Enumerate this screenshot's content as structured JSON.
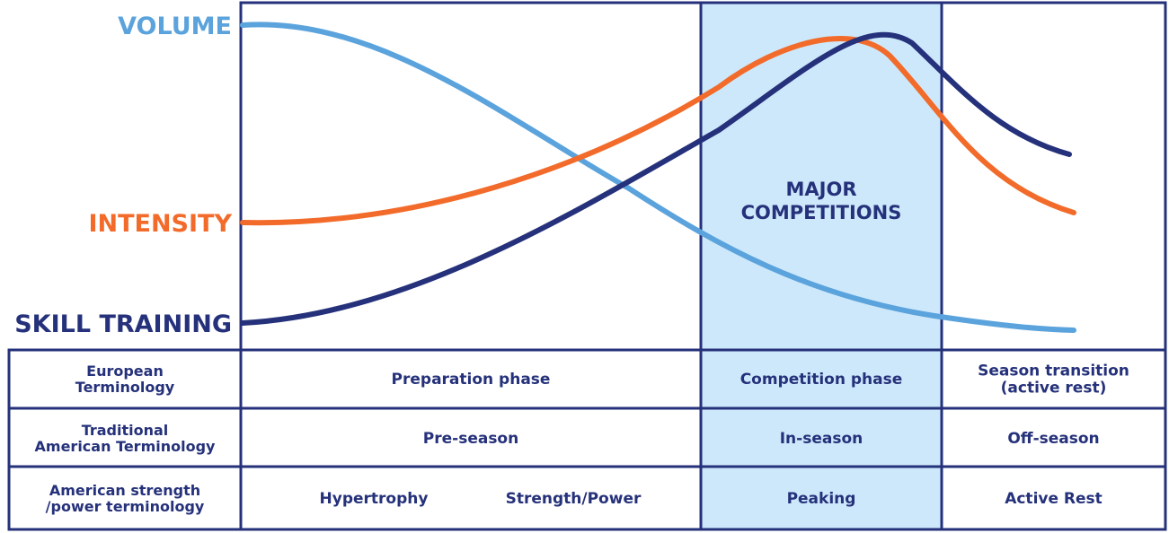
{
  "labels": {
    "volume": "VOLUME",
    "intensity": "INTENSITY",
    "skill_training": "SKILL TRAINING"
  },
  "band_label": [
    "MAJOR",
    "COMPETITIONS"
  ],
  "table": {
    "rows": [
      {
        "header": [
          "European",
          "Terminology"
        ],
        "cells": [
          [
            "Preparation phase"
          ],
          [
            "Competition phase"
          ],
          [
            "Season transition",
            "(active rest)"
          ]
        ]
      },
      {
        "header": [
          "Traditional",
          "American Terminology"
        ],
        "cells": [
          [
            "Pre-season"
          ],
          [
            "In-season"
          ],
          [
            "Off-season"
          ]
        ]
      },
      {
        "header": [
          "American strength",
          "/power terminology"
        ],
        "cells": [
          [
            "Hypertrophy",
            "Strength/Power"
          ],
          [
            "Peaking"
          ],
          [
            "Active Rest"
          ]
        ]
      }
    ]
  }
}
